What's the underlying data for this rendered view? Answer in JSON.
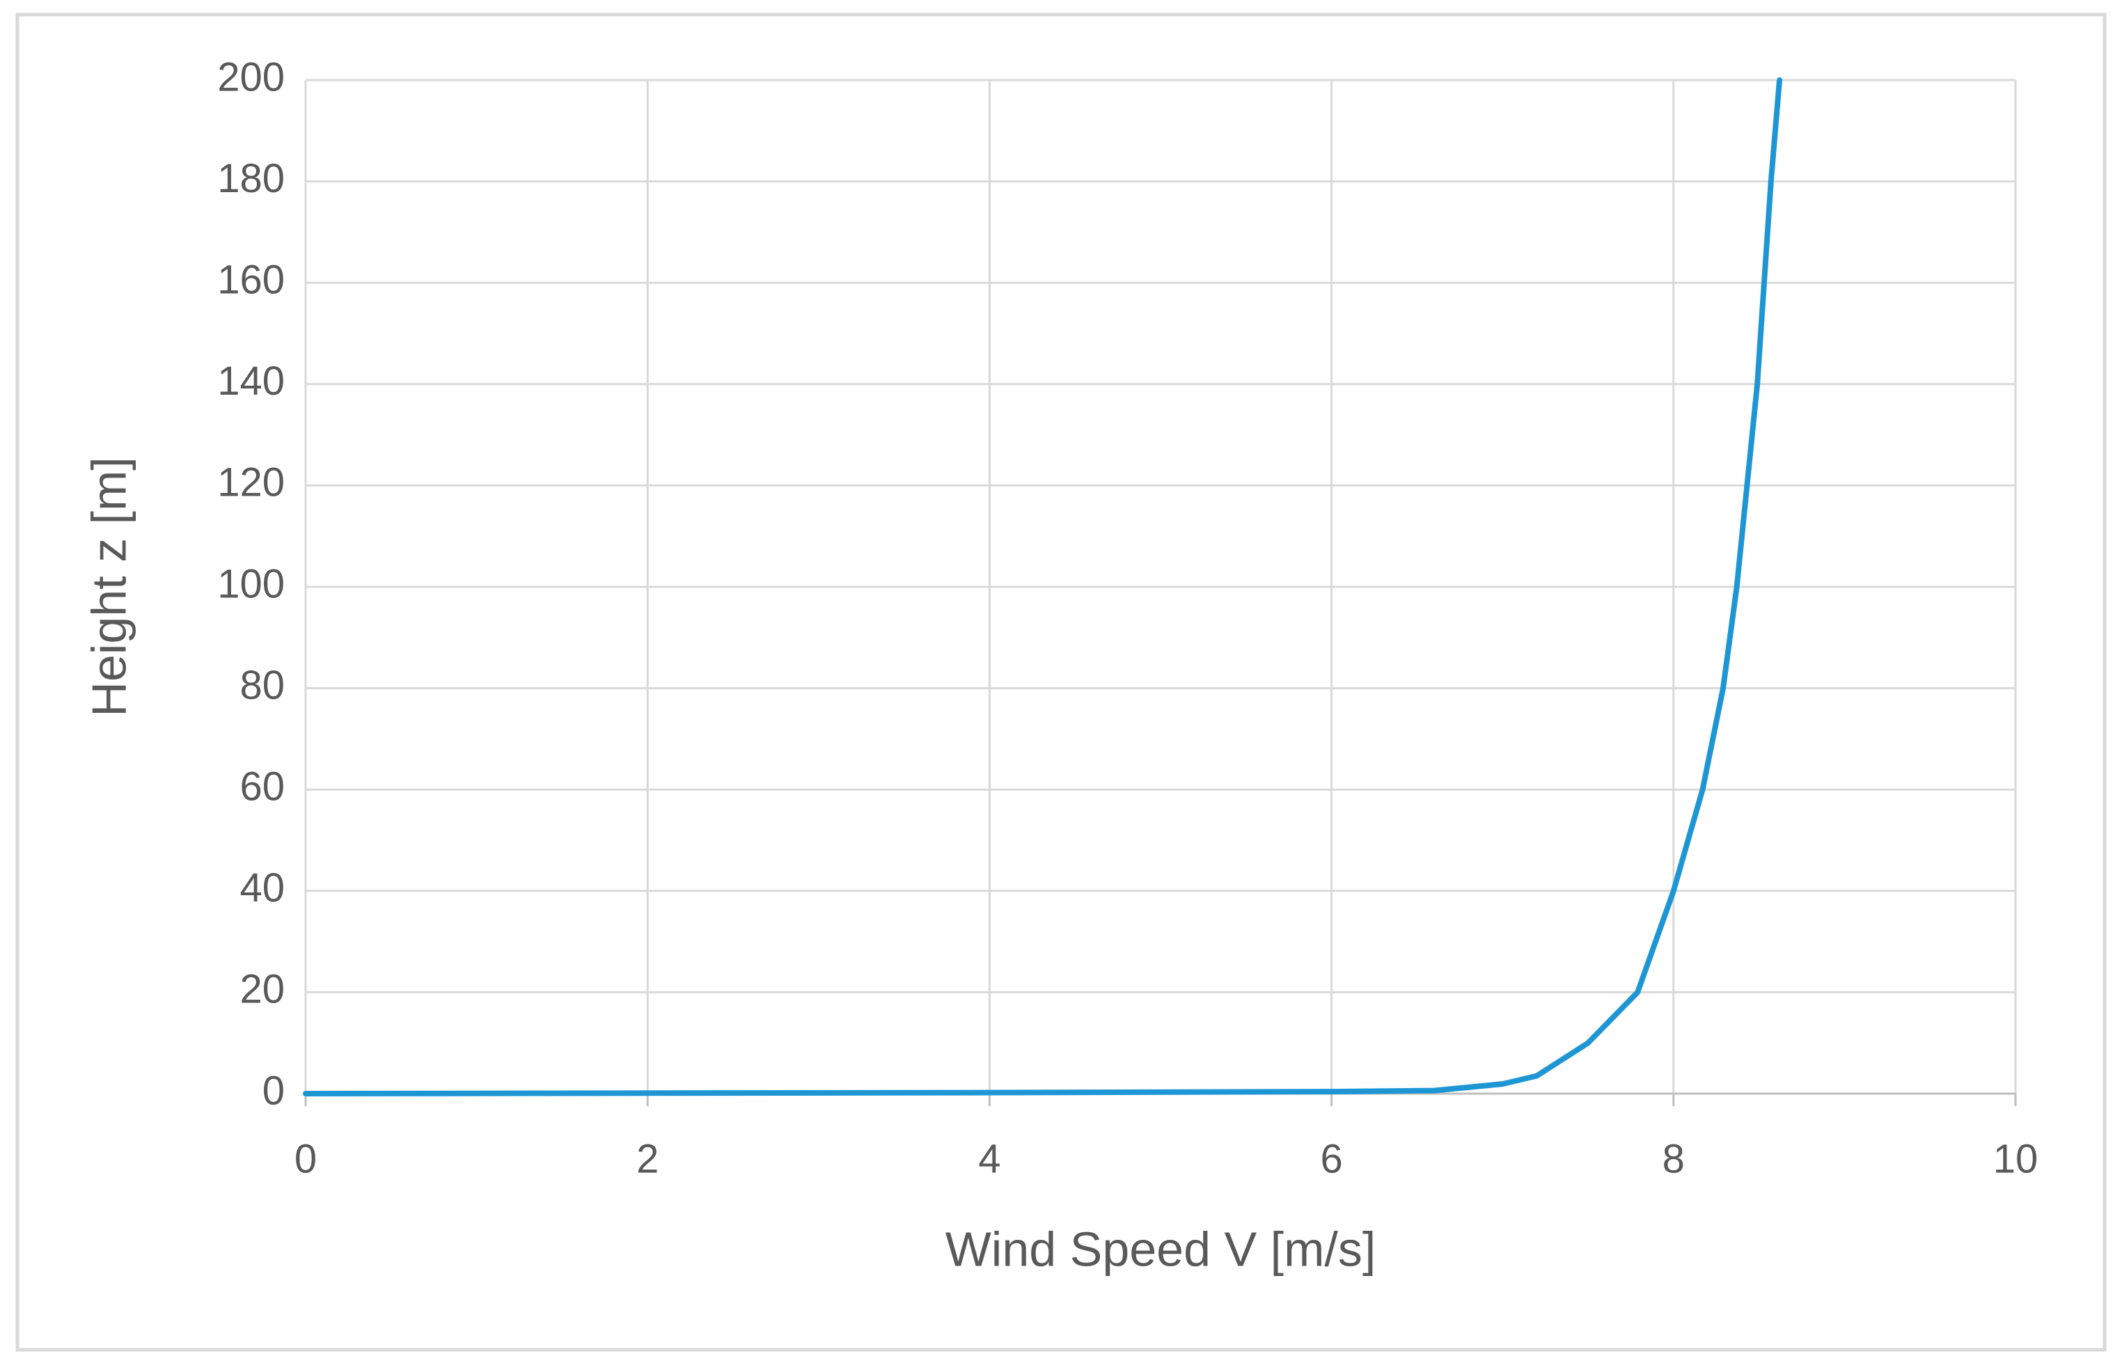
{
  "chart_data": {
    "type": "line",
    "x_label": "Wind Speed V [m/s]",
    "y_label": "Height z [m]",
    "x": [
      0,
      2,
      4,
      6,
      6.6,
      7,
      7.2,
      7.5,
      7.79,
      8,
      8.17,
      8.29,
      8.37,
      8.43,
      8.49,
      8.53,
      8.57,
      8.62
    ],
    "series": [
      {
        "name": "Height",
        "color": "#1f96d4",
        "values": [
          0,
          0.1,
          0.2,
          0.4,
          0.6,
          1.9,
          3.5,
          10,
          20,
          40,
          60,
          80,
          100,
          120,
          140,
          160,
          180,
          200
        ]
      }
    ],
    "xlim": [
      0,
      10
    ],
    "xticks": [
      0,
      2,
      4,
      6,
      8,
      10
    ],
    "ylim": [
      0,
      200
    ],
    "yticks": [
      0,
      20,
      40,
      60,
      80,
      100,
      120,
      140,
      160,
      180,
      200
    ],
    "grid": true
  }
}
